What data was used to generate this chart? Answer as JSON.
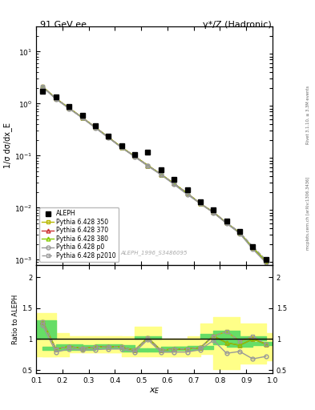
{
  "title_left": "91 GeV ee",
  "title_right": "γ*/Z (Hadronic)",
  "ylabel_main": "1/σ dσ/dx_E",
  "ylabel_ratio": "Ratio to ALEPH",
  "xlabel": "x_E",
  "watermark": "ALEPH_1996_S3486095",
  "right_label": "Rivet 3.1.10, ≥ 3.3M events",
  "right_label2": "mcplots.cern.ch [arXiv:1306.3436]",
  "aleph_x": [
    0.125,
    0.175,
    0.225,
    0.275,
    0.325,
    0.375,
    0.425,
    0.475,
    0.525,
    0.575,
    0.625,
    0.675,
    0.725,
    0.775,
    0.825,
    0.875,
    0.925,
    0.975
  ],
  "aleph_y": [
    1.75,
    1.35,
    0.88,
    0.6,
    0.38,
    0.24,
    0.155,
    0.105,
    0.118,
    0.053,
    0.035,
    0.022,
    0.013,
    0.009,
    0.0055,
    0.0035,
    0.0018,
    0.001
  ],
  "p350_x": [
    0.125,
    0.175,
    0.225,
    0.275,
    0.325,
    0.375,
    0.425,
    0.475,
    0.525,
    0.575,
    0.625,
    0.675,
    0.725,
    0.775,
    0.825,
    0.875,
    0.925,
    0.975
  ],
  "p350_y": [
    2.1,
    1.25,
    0.82,
    0.54,
    0.35,
    0.225,
    0.145,
    0.097,
    0.065,
    0.044,
    0.029,
    0.019,
    0.012,
    0.0082,
    0.0051,
    0.0033,
    0.0017,
    0.00095
  ],
  "p370_x": [
    0.125,
    0.175,
    0.225,
    0.275,
    0.325,
    0.375,
    0.425,
    0.475,
    0.525,
    0.575,
    0.625,
    0.675,
    0.725,
    0.775,
    0.825,
    0.875,
    0.925,
    0.975
  ],
  "p370_y": [
    2.1,
    1.25,
    0.82,
    0.54,
    0.35,
    0.225,
    0.145,
    0.097,
    0.065,
    0.044,
    0.029,
    0.019,
    0.012,
    0.0082,
    0.0051,
    0.0033,
    0.0017,
    0.00095
  ],
  "p380_x": [
    0.125,
    0.175,
    0.225,
    0.275,
    0.325,
    0.375,
    0.425,
    0.475,
    0.525,
    0.575,
    0.625,
    0.675,
    0.725,
    0.775,
    0.825,
    0.875,
    0.925,
    0.975
  ],
  "p380_y": [
    2.1,
    1.25,
    0.82,
    0.54,
    0.35,
    0.225,
    0.145,
    0.097,
    0.065,
    0.044,
    0.029,
    0.019,
    0.012,
    0.0082,
    0.0051,
    0.0033,
    0.0017,
    0.00095
  ],
  "p0_x": [
    0.125,
    0.175,
    0.225,
    0.275,
    0.325,
    0.375,
    0.425,
    0.475,
    0.525,
    0.575,
    0.625,
    0.675,
    0.725,
    0.775,
    0.825,
    0.875,
    0.925,
    0.975
  ],
  "p0_y": [
    2.05,
    1.22,
    0.8,
    0.53,
    0.34,
    0.22,
    0.142,
    0.095,
    0.063,
    0.043,
    0.028,
    0.018,
    0.012,
    0.008,
    0.005,
    0.0032,
    0.0016,
    0.00088
  ],
  "p2010_x": [
    0.125,
    0.175,
    0.225,
    0.275,
    0.325,
    0.375,
    0.425,
    0.475,
    0.525,
    0.575,
    0.625,
    0.675,
    0.725,
    0.775,
    0.825,
    0.875,
    0.925,
    0.975
  ],
  "p2010_y": [
    2.1,
    1.25,
    0.82,
    0.54,
    0.35,
    0.225,
    0.145,
    0.097,
    0.065,
    0.044,
    0.029,
    0.019,
    0.012,
    0.0082,
    0.0052,
    0.0034,
    0.0018,
    0.001
  ],
  "color_p350": "#b8b800",
  "color_p370": "#cc3333",
  "color_p380": "#88cc00",
  "color_p0": "#999999",
  "color_p2010": "#999999",
  "color_aleph": "#000000",
  "band_yellow": "#ffff88",
  "band_green": "#66dd66",
  "ratio_p350_x": [
    0.125,
    0.175,
    0.225,
    0.275,
    0.325,
    0.375,
    0.425,
    0.475,
    0.525,
    0.575,
    0.625,
    0.675,
    0.725,
    0.775,
    0.825,
    0.875,
    0.925,
    0.975
  ],
  "ratio_p350": [
    1.28,
    0.84,
    0.88,
    0.85,
    0.87,
    0.88,
    0.87,
    0.82,
    1.02,
    0.82,
    0.84,
    0.84,
    0.86,
    1.05,
    1.12,
    0.97,
    1.02,
    0.92
  ],
  "ratio_p370_x": [
    0.125,
    0.175,
    0.225,
    0.275,
    0.325,
    0.375,
    0.425,
    0.475,
    0.525,
    0.575,
    0.625,
    0.675,
    0.725,
    0.775,
    0.825,
    0.875,
    0.925,
    0.975
  ],
  "ratio_p370": [
    1.28,
    0.84,
    0.88,
    0.85,
    0.87,
    0.88,
    0.87,
    0.82,
    1.02,
    0.82,
    0.84,
    0.84,
    0.86,
    1.05,
    0.94,
    0.9,
    1.0,
    0.92
  ],
  "ratio_p380_x": [
    0.125,
    0.175,
    0.225,
    0.275,
    0.325,
    0.375,
    0.425,
    0.475,
    0.525,
    0.575,
    0.625,
    0.675,
    0.725,
    0.775,
    0.825,
    0.875,
    0.925,
    0.975
  ],
  "ratio_p380": [
    1.28,
    0.84,
    0.88,
    0.85,
    0.87,
    0.88,
    0.87,
    0.82,
    1.02,
    0.82,
    0.84,
    0.84,
    0.86,
    1.05,
    0.94,
    0.9,
    1.0,
    0.92
  ],
  "ratio_p0_x": [
    0.125,
    0.175,
    0.225,
    0.275,
    0.325,
    0.375,
    0.425,
    0.475,
    0.525,
    0.575,
    0.625,
    0.675,
    0.725,
    0.775,
    0.825,
    0.875,
    0.925,
    0.975
  ],
  "ratio_p0": [
    1.22,
    0.79,
    0.84,
    0.82,
    0.83,
    0.84,
    0.84,
    0.79,
    0.99,
    0.79,
    0.79,
    0.79,
    0.83,
    0.98,
    0.77,
    0.8,
    0.68,
    0.72
  ],
  "ratio_p2010_x": [
    0.125,
    0.175,
    0.225,
    0.275,
    0.325,
    0.375,
    0.425,
    0.475,
    0.525,
    0.575,
    0.625,
    0.675,
    0.725,
    0.775,
    0.825,
    0.875,
    0.925,
    0.975
  ],
  "ratio_p2010": [
    1.28,
    0.84,
    0.88,
    0.85,
    0.87,
    0.88,
    0.87,
    0.82,
    1.02,
    0.82,
    0.84,
    0.84,
    0.86,
    1.05,
    1.12,
    0.97,
    1.05,
    0.92
  ],
  "band_yellow_lo": [
    0.72,
    0.72,
    0.8,
    0.78,
    0.78,
    0.78,
    0.78,
    0.72,
    0.92,
    0.72,
    0.72,
    0.72,
    0.76,
    0.92,
    0.52,
    0.72,
    0.6,
    0.65
  ],
  "band_yellow_hi": [
    1.42,
    1.1,
    1.05,
    1.05,
    1.05,
    1.05,
    1.05,
    1.0,
    1.2,
    1.0,
    1.0,
    1.0,
    1.05,
    1.25,
    1.35,
    1.15,
    1.25,
    1.1
  ],
  "band_green_lo": [
    1.0,
    0.82,
    0.86,
    0.83,
    0.85,
    0.86,
    0.85,
    0.8,
    1.0,
    0.8,
    0.82,
    0.82,
    0.84,
    1.02,
    0.92,
    0.88,
    0.98,
    0.9
  ],
  "band_green_hi": [
    1.3,
    0.88,
    0.92,
    0.88,
    0.9,
    0.91,
    0.9,
    0.85,
    1.05,
    0.85,
    0.87,
    0.87,
    0.89,
    1.08,
    1.14,
    1.0,
    1.05,
    0.95
  ],
  "ylim_main": [
    0.0008,
    30
  ],
  "ylim_ratio": [
    0.45,
    2.2
  ],
  "yticks_ratio": [
    0.5,
    1.0,
    1.5,
    2.0
  ],
  "xlim": [
    0.1,
    1.0
  ]
}
